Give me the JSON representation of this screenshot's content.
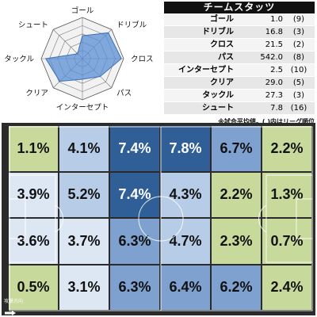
{
  "radar": {
    "axes": [
      "ゴール",
      "ドリブル",
      "クロス",
      "パス",
      "インターセプト",
      "クリア",
      "タックル",
      "シュート"
    ],
    "values": [
      9,
      3,
      2,
      8,
      10,
      5,
      3,
      16
    ],
    "max_rank": 18,
    "fill_color": "#5b8fd6"
  },
  "stats": {
    "title": "チームスタッツ",
    "rows": [
      {
        "label": "ゴール",
        "value": "1.0",
        "rank": "(9)"
      },
      {
        "label": "ドリブル",
        "value": "16.8",
        "rank": "(3)"
      },
      {
        "label": "クロス",
        "value": "21.5",
        "rank": "(2)"
      },
      {
        "label": "パス",
        "value": "542.0",
        "rank": "(8)"
      },
      {
        "label": "インターセプト",
        "value": "2.5",
        "rank": "(10)"
      },
      {
        "label": "クリア",
        "value": "29.0",
        "rank": "(5)"
      },
      {
        "label": "タックル",
        "value": "27.3",
        "rank": "(3)"
      },
      {
        "label": "シュート",
        "value": "7.8",
        "rank": "(16)"
      }
    ],
    "note": "※試合平均値。( )内はリーグ順位"
  },
  "pitch": {
    "attack_direction": "攻撃方向",
    "zones": [
      [
        "1.1%",
        "4.1%",
        "7.4%",
        "7.8%",
        "6.7%",
        "2.2%"
      ],
      [
        "3.9%",
        "5.2%",
        "7.4%",
        "4.3%",
        "2.2%",
        "1.3%"
      ],
      [
        "3.6%",
        "3.7%",
        "6.3%",
        "4.7%",
        "2.3%",
        "0.7%"
      ],
      [
        "0.5%",
        "3.1%",
        "6.3%",
        "6.4%",
        "6.2%",
        "2.4%"
      ]
    ],
    "zone_colors": [
      [
        "#c8d99c",
        "#b7cce6",
        "#2f5f96",
        "#2f5f96",
        "#7ea1cf",
        "#c8d99c"
      ],
      [
        "#dde7f3",
        "#b7cce6",
        "#2f5f96",
        "#b7cce6",
        "#c8d99c",
        "#c8d99c"
      ],
      [
        "#dde7f3",
        "#dde7f3",
        "#7ea1cf",
        "#b7cce6",
        "#c8d99c",
        "#c8d99c"
      ],
      [
        "#c8d99c",
        "#dde7f3",
        "#7ea1cf",
        "#7ea1cf",
        "#7ea1cf",
        "#c8d99c"
      ]
    ]
  }
}
